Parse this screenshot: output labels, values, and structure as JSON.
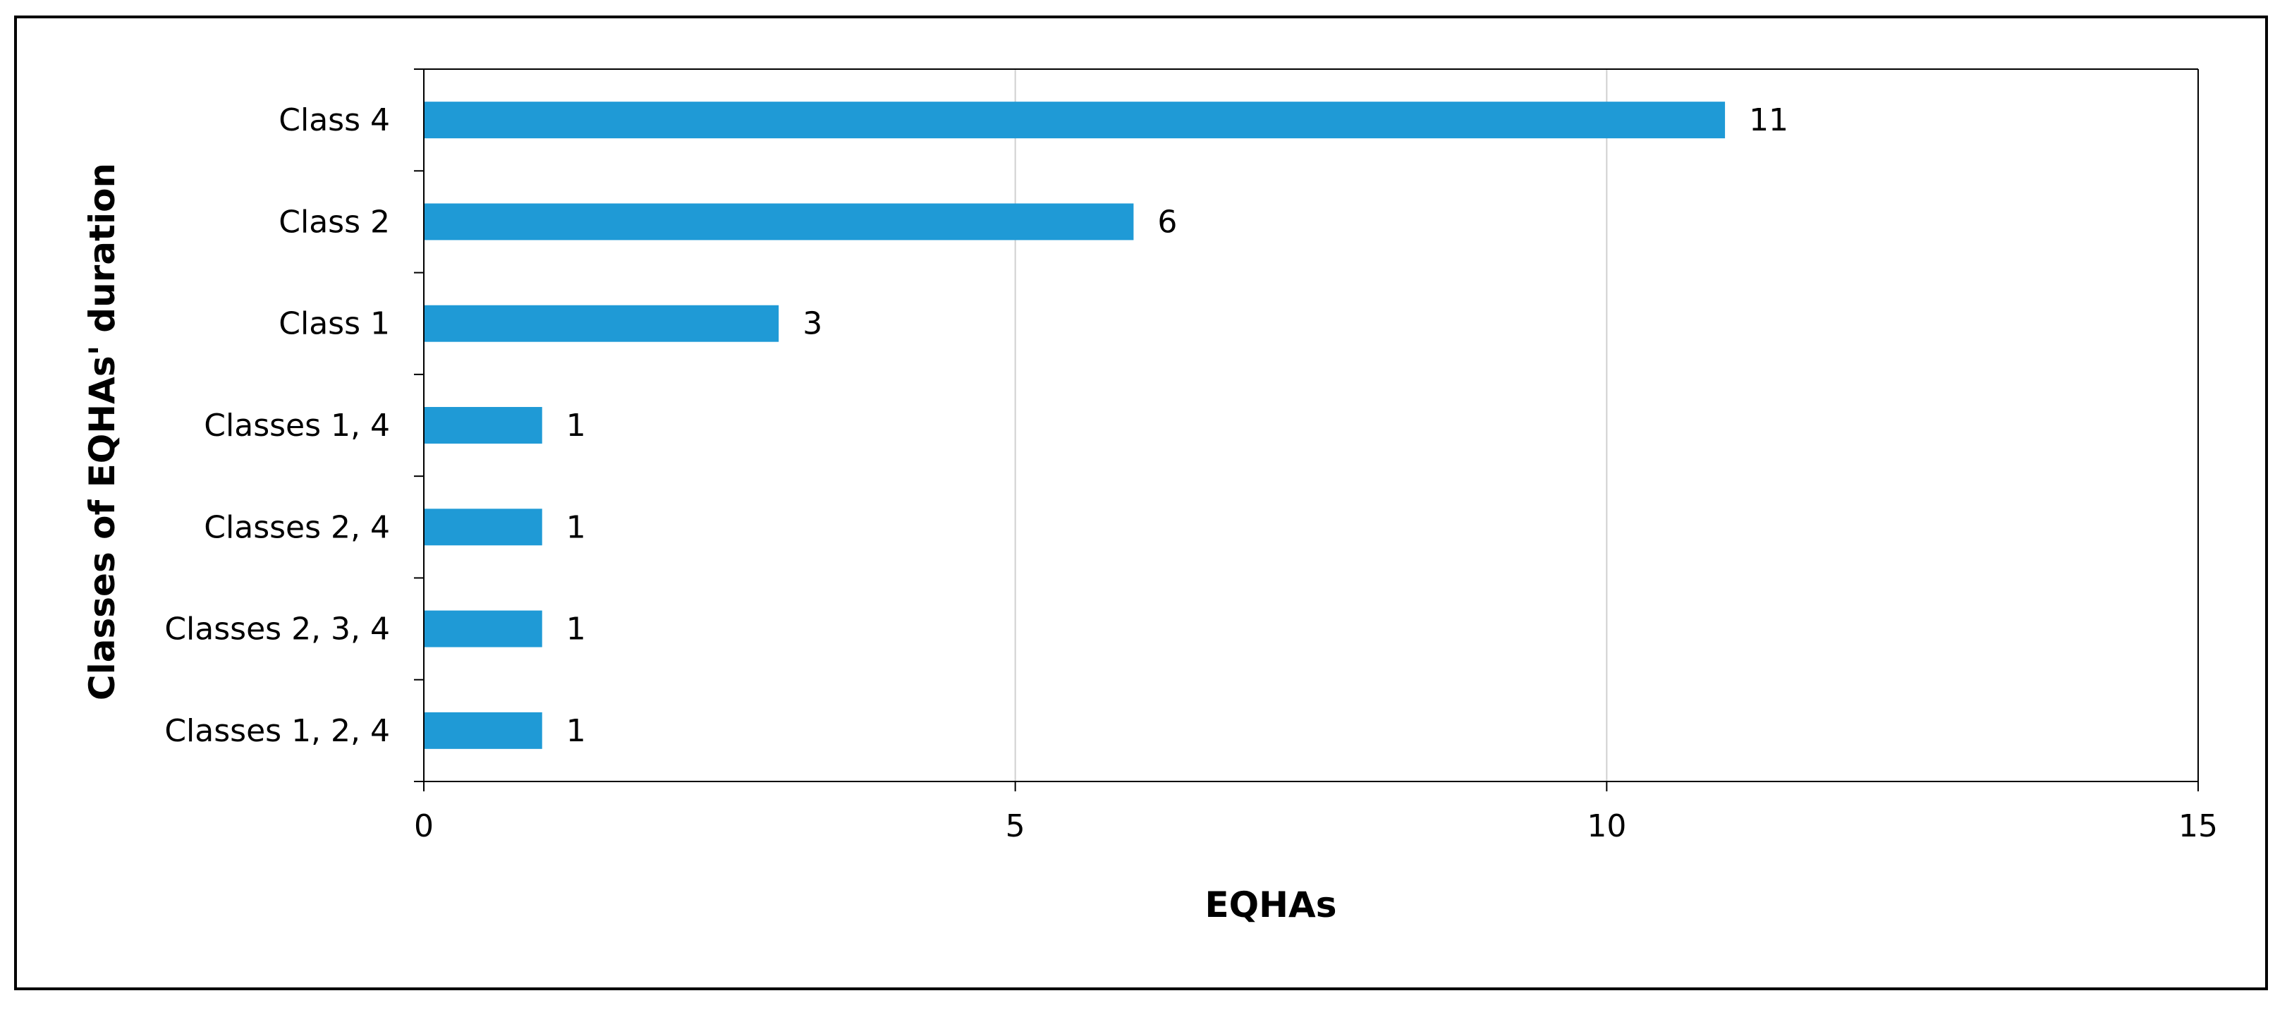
{
  "chart_data": {
    "type": "bar",
    "orientation": "horizontal",
    "categories": [
      "Class 4",
      "Class 2",
      "Class 1",
      "Classes 1, 4",
      "Classes 2, 4",
      "Classes 2, 3, 4",
      "Classes 1, 2, 4"
    ],
    "values": [
      11,
      6,
      3,
      1,
      1,
      1,
      1
    ],
    "data_labels": [
      "11",
      "6",
      "3",
      "1",
      "1",
      "1",
      "1"
    ],
    "xlabel": "EQHAs",
    "ylabel": "Classes of EQHAs' duration",
    "xlim": [
      0,
      15
    ],
    "xticks": [
      0,
      5,
      10,
      15
    ],
    "xtick_labels": [
      "0",
      "5",
      "10",
      "15"
    ],
    "grid": "vertical gridlines",
    "legend": "none",
    "colors": {
      "bar": "#1f9ad6",
      "grid": "#d0d0d0",
      "axis": "#000000"
    }
  }
}
